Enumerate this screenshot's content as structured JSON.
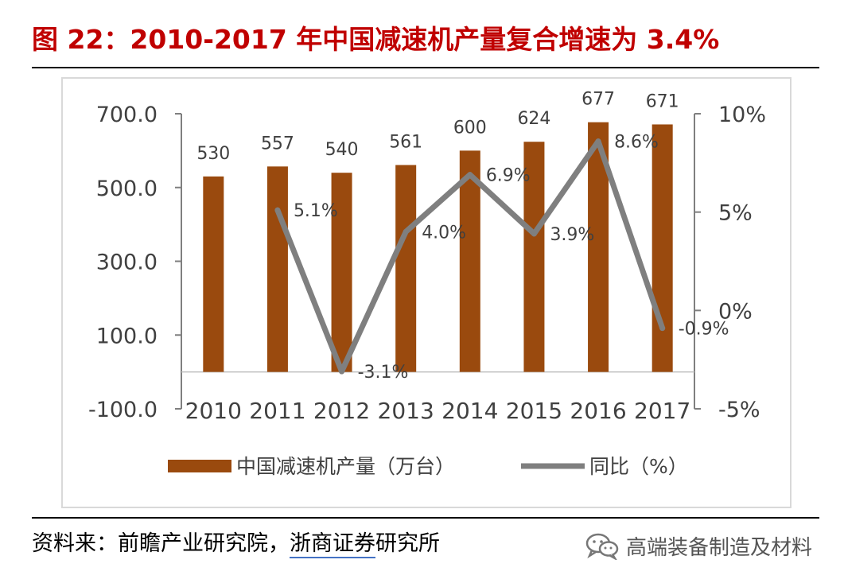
{
  "title": "图 22：2010-2017 年中国减速机产量复合增速为 3.4%",
  "source": {
    "prefix": "资料来：前瞻产业研究院，",
    "link_text": "浙商证券",
    "suffix": "研究所"
  },
  "brand": {
    "icon": "wechat-icon",
    "text": "高端装备制造及材料"
  },
  "chart_data": {
    "type": "bar",
    "categories": [
      "2010",
      "2011",
      "2012",
      "2013",
      "2014",
      "2015",
      "2016",
      "2017"
    ],
    "series": [
      {
        "name": "中国减速机产量（万台）",
        "type": "bar",
        "axis": "left",
        "color": "#9a4a0e",
        "values": [
          530,
          557,
          540,
          561,
          600,
          624,
          677,
          671
        ],
        "data_labels": [
          "530",
          "557",
          "540",
          "561",
          "600",
          "624",
          "677",
          "671"
        ]
      },
      {
        "name": "同比（%）",
        "type": "line",
        "axis": "right",
        "color": "#7f7f7f",
        "values": [
          null,
          5.1,
          -3.1,
          4.0,
          6.9,
          3.9,
          8.6,
          -0.9
        ],
        "data_labels": [
          "",
          "5.1%",
          "-3.1%",
          "4.0%",
          "6.9%",
          "3.9%",
          "8.6%",
          "-0.9%"
        ]
      }
    ],
    "y_left": {
      "min": -100,
      "max": 700,
      "ticks": [
        700,
        500,
        300,
        100,
        -100
      ],
      "tick_labels": [
        "700.0",
        "500.0",
        "300.0",
        "100.0",
        "-100.0"
      ]
    },
    "y_right": {
      "min": -5,
      "max": 10,
      "ticks": [
        10,
        5,
        0,
        -5
      ],
      "tick_labels": [
        "10%",
        "5%",
        "0%",
        "-5%"
      ]
    },
    "grid": false,
    "legend_position": "bottom"
  }
}
